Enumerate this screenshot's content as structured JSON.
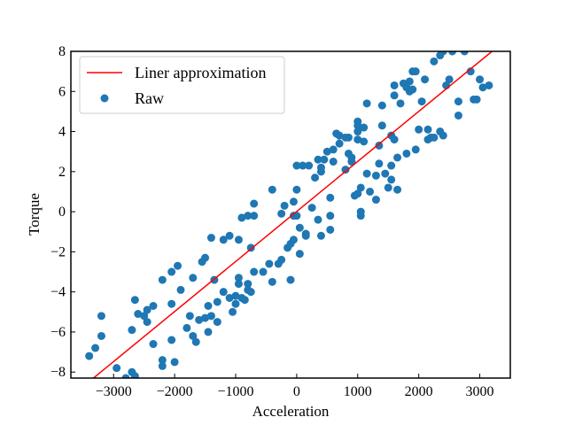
{
  "chart_data": {
    "type": "scatter",
    "xlabel": "Acceleration",
    "ylabel": "Torque",
    "xlim": [
      -3700,
      3500
    ],
    "ylim": [
      -8.3,
      8.0
    ],
    "xticks": [
      -3000,
      -2000,
      -1000,
      0,
      1000,
      2000,
      3000
    ],
    "xtick_labels": [
      "−3000",
      "−2000",
      "−1000",
      "0",
      "1000",
      "2000",
      "3000"
    ],
    "yticks": [
      -8,
      -6,
      -4,
      -2,
      0,
      2,
      4,
      6,
      8
    ],
    "ytick_labels": [
      "−8",
      "−6",
      "−4",
      "−2",
      "0",
      "2",
      "4",
      "6",
      "8"
    ],
    "tick_direction": "in",
    "grid": false,
    "legend": {
      "position": "upper-left"
    },
    "series": [
      {
        "name": "Liner approximation",
        "kind": "line",
        "color": "#ff0000",
        "x": [
          -3330,
          3200
        ],
        "y": [
          -8.3,
          8.0
        ]
      },
      {
        "name": "Raw",
        "kind": "scatter",
        "color": "#1f77b4",
        "points": [
          [
            -3400,
            -7.2
          ],
          [
            -3300,
            -6.8
          ],
          [
            -3200,
            -5.2
          ],
          [
            -3200,
            -6.2
          ],
          [
            -2950,
            -7.8
          ],
          [
            -2800,
            -8.3
          ],
          [
            -2700,
            -8.0
          ],
          [
            -2650,
            -8.2
          ],
          [
            -2700,
            -5.9
          ],
          [
            -2650,
            -4.4
          ],
          [
            -2600,
            -5.1
          ],
          [
            -2500,
            -5.2
          ],
          [
            -2450,
            -5.5
          ],
          [
            -2450,
            -4.9
          ],
          [
            -2350,
            -4.7
          ],
          [
            -2350,
            -6.6
          ],
          [
            -2200,
            -7.4
          ],
          [
            -2200,
            -7.7
          ],
          [
            -2200,
            -3.4
          ],
          [
            -2050,
            -4.6
          ],
          [
            -2050,
            -3.0
          ],
          [
            -2050,
            -6.4
          ],
          [
            -2000,
            -7.5
          ],
          [
            -1950,
            -2.7
          ],
          [
            -1900,
            -3.9
          ],
          [
            -1800,
            -5.8
          ],
          [
            -1750,
            -5.2
          ],
          [
            -1700,
            -6.2
          ],
          [
            -1700,
            -3.3
          ],
          [
            -1650,
            -6.5
          ],
          [
            -1600,
            -5.4
          ],
          [
            -1550,
            -2.5
          ],
          [
            -1500,
            -5.3
          ],
          [
            -1500,
            -2.3
          ],
          [
            -1450,
            -4.7
          ],
          [
            -1450,
            -6.0
          ],
          [
            -1400,
            -1.3
          ],
          [
            -1400,
            -5.2
          ],
          [
            -1350,
            -3.4
          ],
          [
            -1300,
            -4.5
          ],
          [
            -1300,
            -5.5
          ],
          [
            -1200,
            -4.0
          ],
          [
            -1200,
            -1.4
          ],
          [
            -1100,
            -4.3
          ],
          [
            -1100,
            -1.2
          ],
          [
            -1050,
            -5.0
          ],
          [
            -1000,
            -4.6
          ],
          [
            -1000,
            -4.2
          ],
          [
            -950,
            -3.3
          ],
          [
            -950,
            -3.6
          ],
          [
            -950,
            -1.4
          ],
          [
            -900,
            -4.3
          ],
          [
            -900,
            -0.3
          ],
          [
            -850,
            -4.4
          ],
          [
            -800,
            -3.6
          ],
          [
            -800,
            -3.9
          ],
          [
            -750,
            -4.0
          ],
          [
            -800,
            -0.2
          ],
          [
            -750,
            -1.8
          ],
          [
            -700,
            -3.0
          ],
          [
            -700,
            0.4
          ],
          [
            -700,
            -0.2
          ],
          [
            -550,
            -3.0
          ],
          [
            -450,
            -2.6
          ],
          [
            -400,
            -3.5
          ],
          [
            -400,
            1.1
          ],
          [
            -300,
            -2.6
          ],
          [
            -250,
            -2.4
          ],
          [
            -250,
            -0.1
          ],
          [
            -200,
            0.3
          ],
          [
            -150,
            -1.8
          ],
          [
            -100,
            -3.4
          ],
          [
            -100,
            -1.6
          ],
          [
            -50,
            -1.4
          ],
          [
            -50,
            0.5
          ],
          [
            -50,
            -0.2
          ],
          [
            0,
            2.3
          ],
          [
            0,
            1.1
          ],
          [
            0,
            -0.2
          ],
          [
            50,
            -2.1
          ],
          [
            50,
            -0.8
          ],
          [
            100,
            2.3
          ],
          [
            150,
            -1.1
          ],
          [
            150,
            -1.2
          ],
          [
            200,
            2.3
          ],
          [
            250,
            0.2
          ],
          [
            300,
            1.7
          ],
          [
            350,
            2.6
          ],
          [
            350,
            -0.4
          ],
          [
            400,
            -1.2
          ],
          [
            400,
            2.0
          ],
          [
            400,
            2.2
          ],
          [
            450,
            2.6
          ],
          [
            500,
            3.0
          ],
          [
            550,
            -0.9
          ],
          [
            550,
            0.7
          ],
          [
            550,
            -0.2
          ],
          [
            600,
            2.5
          ],
          [
            600,
            3.1
          ],
          [
            650,
            3.9
          ],
          [
            700,
            3.4
          ],
          [
            700,
            3.8
          ],
          [
            800,
            3.7
          ],
          [
            800,
            2.1
          ],
          [
            850,
            3.7
          ],
          [
            850,
            2.9
          ],
          [
            900,
            2.7
          ],
          [
            900,
            2.5
          ],
          [
            950,
            0.8
          ],
          [
            1000,
            0.9
          ],
          [
            1000,
            3.6
          ],
          [
            1000,
            4.0
          ],
          [
            1000,
            4.5
          ],
          [
            1000,
            4.3
          ],
          [
            1050,
            0.0
          ],
          [
            1050,
            -0.2
          ],
          [
            1050,
            1.2
          ],
          [
            1100,
            3.5
          ],
          [
            1100,
            4.2
          ],
          [
            1150,
            1.9
          ],
          [
            1150,
            5.4
          ],
          [
            1200,
            1.0
          ],
          [
            1300,
            1.8
          ],
          [
            1300,
            0.6
          ],
          [
            1350,
            2.4
          ],
          [
            1350,
            3.3
          ],
          [
            1400,
            4.3
          ],
          [
            1400,
            5.3
          ],
          [
            1450,
            1.9
          ],
          [
            1500,
            1.2
          ],
          [
            1550,
            2.3
          ],
          [
            1550,
            1.6
          ],
          [
            1550,
            3.8
          ],
          [
            1600,
            6.3
          ],
          [
            1600,
            5.8
          ],
          [
            1600,
            3.6
          ],
          [
            1650,
            2.7
          ],
          [
            1650,
            1.1
          ],
          [
            1700,
            5.4
          ],
          [
            1750,
            6.4
          ],
          [
            1800,
            6.2
          ],
          [
            1800,
            2.9
          ],
          [
            1850,
            6.0
          ],
          [
            1850,
            6.5
          ],
          [
            1900,
            6.1
          ],
          [
            1900,
            7.0
          ],
          [
            1950,
            7.0
          ],
          [
            1950,
            3.1
          ],
          [
            2000,
            4.1
          ],
          [
            2050,
            5.5
          ],
          [
            2100,
            6.6
          ],
          [
            2150,
            4.1
          ],
          [
            2150,
            3.6
          ],
          [
            2200,
            3.7
          ],
          [
            2250,
            3.7
          ],
          [
            2250,
            7.5
          ],
          [
            2350,
            7.8
          ],
          [
            2350,
            4.0
          ],
          [
            2400,
            8.0
          ],
          [
            2400,
            3.8
          ],
          [
            2450,
            6.3
          ],
          [
            2500,
            6.6
          ],
          [
            2550,
            8.0
          ],
          [
            2650,
            5.5
          ],
          [
            2650,
            4.8
          ],
          [
            2750,
            8.0
          ],
          [
            2850,
            7.0
          ],
          [
            2900,
            5.6
          ],
          [
            2950,
            5.6
          ],
          [
            3000,
            6.6
          ],
          [
            3050,
            6.2
          ],
          [
            3150,
            6.3
          ]
        ]
      }
    ]
  }
}
